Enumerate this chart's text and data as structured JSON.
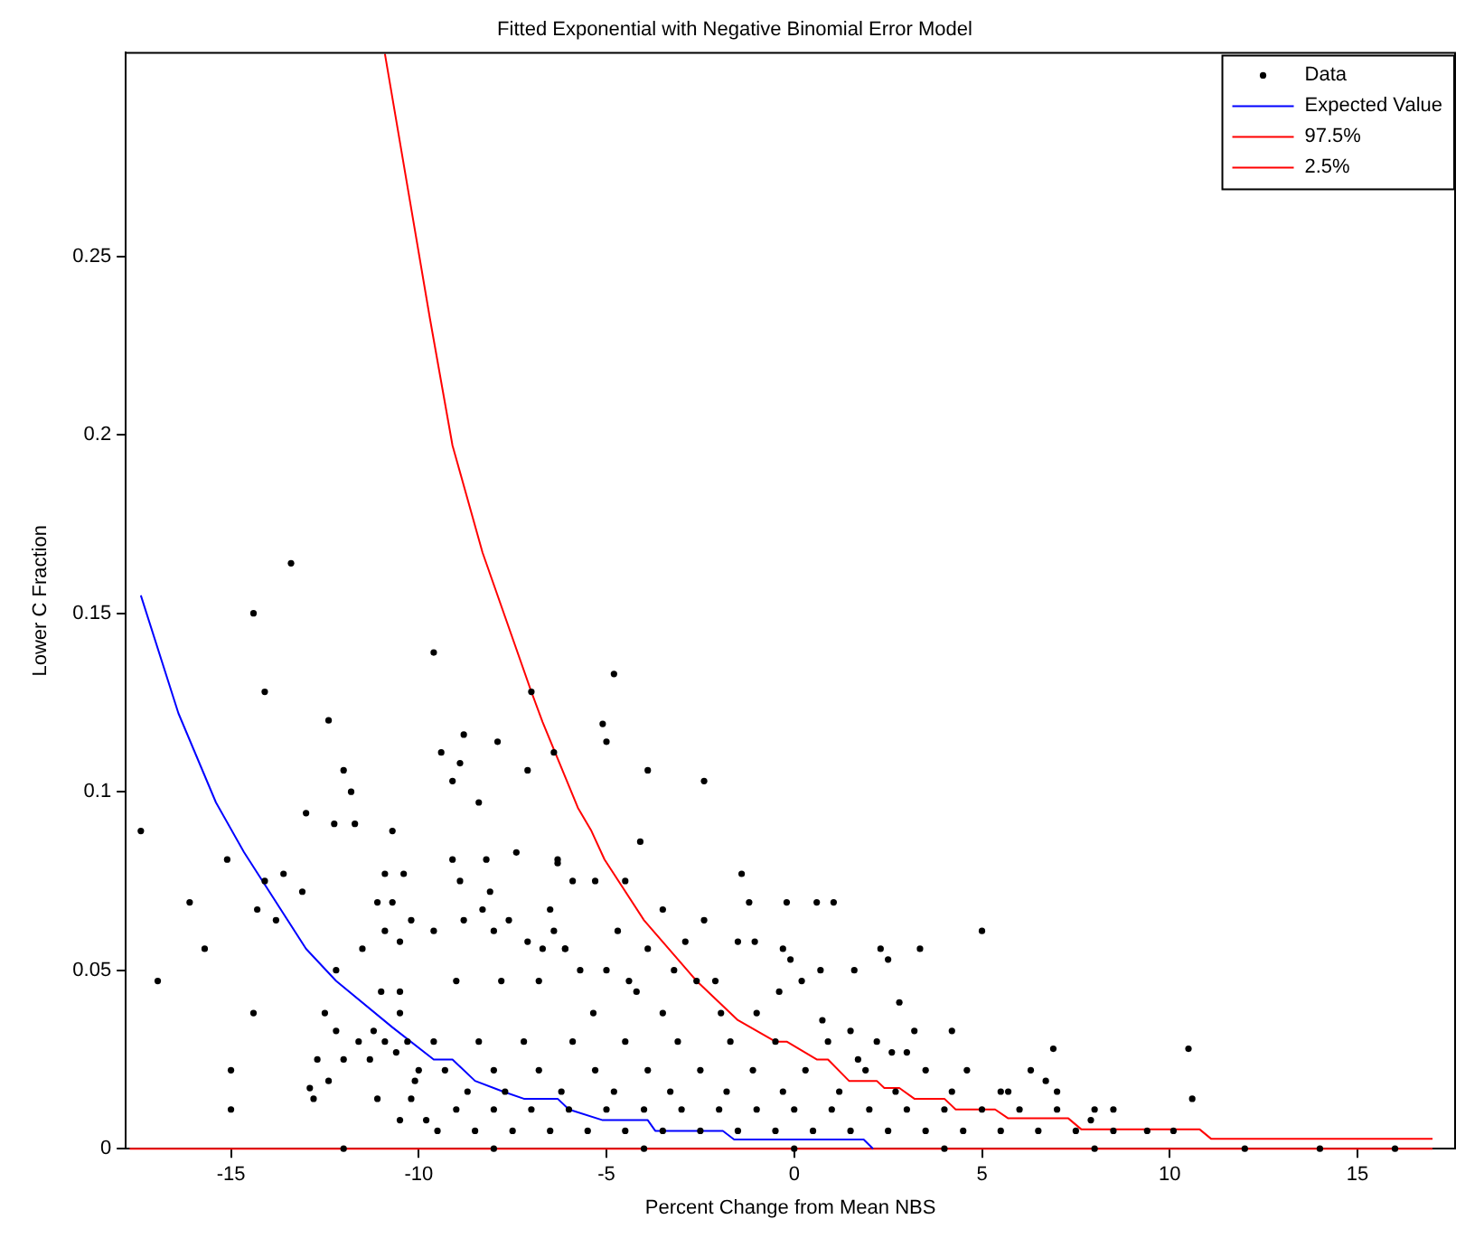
{
  "chart_data": {
    "type": "scatter",
    "title": "Fitted Exponential with Negative Binomial Error Model",
    "xlabel": "Percent Change from Mean NBS",
    "ylabel": "Lower C Fraction",
    "xlim": [
      -17.8,
      17.6
    ],
    "ylim": [
      0,
      0.307
    ],
    "xticks": [
      -15,
      -10,
      -5,
      0,
      5,
      10,
      15
    ],
    "yticks": [
      0,
      0.05,
      0.1,
      0.15,
      0.2,
      0.25
    ],
    "grid": false,
    "legend": "top right",
    "series": [
      {
        "name": "Data",
        "type": "scatter",
        "color": "#000000",
        "marker": "circle",
        "x": [
          -17.4,
          -16.95,
          -16.1,
          -15.7,
          -15.1,
          -15.0,
          -15.0,
          -14.4,
          -14.1,
          -13.4,
          -14.4,
          -14.3,
          -14.1,
          -13.8,
          -13.6,
          -13.1,
          -13.0,
          -12.9,
          -12.8,
          -12.7,
          -12.4,
          -12.4,
          -12.25,
          -12.2,
          -12.5,
          -12.2,
          -12.0,
          -11.8,
          -11.7,
          -12.0,
          -11.6,
          -11.5,
          -11.3,
          -11.2,
          -11.1,
          -11.1,
          -11.0,
          -10.9,
          -10.9,
          -10.9,
          -10.7,
          -10.7,
          -10.6,
          -10.5,
          -10.5,
          -10.5,
          -10.4,
          -10.3,
          -10.2,
          -10.5,
          -10.2,
          -10.1,
          -10.0,
          -9.8,
          -9.6,
          -9.6,
          -9.4,
          -9.1,
          -9.1,
          -8.9,
          -8.8,
          -8.4,
          -7.9,
          -7.4,
          -7.1,
          -7.0,
          -6.4,
          -6.3,
          -5.9,
          -8.2,
          -8.1,
          -8.9,
          -8.8,
          -8.3,
          -8.0,
          -7.6,
          -6.5,
          -6.4,
          -6.7,
          -6.1,
          -7.1,
          -4.8,
          -5.1,
          -5.0,
          -3.9,
          -2.4,
          -4.1,
          -6.3,
          -5.3,
          -4.5,
          -1.4,
          -1.2,
          -0.2,
          0.6,
          1.05,
          -3.5,
          -2.4,
          -1.5,
          -1.05,
          -0.3,
          -0.1,
          0.7,
          1.6,
          2.3,
          2.5,
          3.35,
          2.8,
          3.2,
          4.2,
          5.0,
          5.5,
          4.6,
          2.6,
          3.0,
          1.7,
          -0.4,
          -2.1,
          -2.9,
          -3.2,
          -3.9,
          -4.7,
          -6.1,
          -5.7,
          -5.0,
          -4.2,
          -5.35,
          -3.5,
          -1.95,
          -1.0,
          0.75,
          1.5,
          -9.5,
          -8.5,
          -7.5,
          -6.5,
          -5.5,
          -4.5,
          -3.5,
          -2.5,
          -1.5,
          -0.5,
          0.5,
          1.5,
          2.5,
          3.5,
          4.5,
          5.5,
          6.5,
          7.5,
          8.5,
          -9,
          -8,
          -7,
          -6,
          -5,
          -4,
          -3,
          -2,
          -1,
          0,
          1,
          2,
          3,
          4,
          5,
          6,
          7,
          8,
          -8.7,
          -7.7,
          -6.2,
          -4.8,
          -3.3,
          -1.8,
          -0.3,
          1.2,
          2.7,
          4.2,
          5.7,
          7.0,
          -9.3,
          -8,
          -6.8,
          -5.3,
          -3.9,
          -2.5,
          -1.1,
          0.3,
          1.9,
          3.5,
          -9.6,
          -8.4,
          -7.2,
          -5.9,
          -4.5,
          -3.1,
          -1.7,
          -0.5,
          0.9,
          2.2,
          -9.0,
          -7.8,
          -6.8,
          -4.4,
          -2.6,
          0.2,
          6.9,
          6.3,
          6.7,
          10.5,
          10.6,
          8.5,
          7.9,
          9.4,
          10.1,
          -12,
          -8,
          -4,
          0,
          4,
          8,
          12,
          14,
          16
        ],
        "values": [
          0.089,
          0.047,
          0.069,
          0.056,
          0.081,
          0.022,
          0.011,
          0.15,
          0.128,
          0.164,
          0.038,
          0.067,
          0.075,
          0.064,
          0.077,
          0.072,
          0.094,
          0.017,
          0.014,
          0.025,
          0.019,
          0.12,
          0.091,
          0.05,
          0.038,
          0.033,
          0.106,
          0.1,
          0.091,
          0.025,
          0.03,
          0.056,
          0.025,
          0.033,
          0.014,
          0.069,
          0.044,
          0.077,
          0.061,
          0.03,
          0.089,
          0.069,
          0.027,
          0.044,
          0.058,
          0.038,
          0.077,
          0.03,
          0.064,
          0.008,
          0.014,
          0.019,
          0.022,
          0.008,
          0.061,
          0.139,
          0.111,
          0.103,
          0.081,
          0.108,
          0.116,
          0.097,
          0.114,
          0.083,
          0.106,
          0.128,
          0.111,
          0.081,
          0.075,
          0.081,
          0.072,
          0.075,
          0.064,
          0.067,
          0.061,
          0.064,
          0.067,
          0.061,
          0.056,
          0.056,
          0.058,
          0.133,
          0.119,
          0.114,
          0.106,
          0.103,
          0.086,
          0.08,
          0.075,
          0.075,
          0.077,
          0.069,
          0.069,
          0.069,
          0.069,
          0.067,
          0.064,
          0.058,
          0.058,
          0.056,
          0.053,
          0.05,
          0.05,
          0.056,
          0.053,
          0.056,
          0.041,
          0.033,
          0.033,
          0.061,
          0.016,
          0.022,
          0.027,
          0.027,
          0.025,
          0.044,
          0.047,
          0.058,
          0.05,
          0.056,
          0.061,
          0.056,
          0.05,
          0.05,
          0.044,
          0.038,
          0.038,
          0.038,
          0.038,
          0.036,
          0.033,
          0.005,
          0.005,
          0.005,
          0.005,
          0.005,
          0.005,
          0.005,
          0.005,
          0.005,
          0.005,
          0.005,
          0.005,
          0.005,
          0.005,
          0.005,
          0.005,
          0.005,
          0.005,
          0.005,
          0.011,
          0.011,
          0.011,
          0.011,
          0.011,
          0.011,
          0.011,
          0.011,
          0.011,
          0.011,
          0.011,
          0.011,
          0.011,
          0.011,
          0.011,
          0.011,
          0.011,
          0.011,
          0.016,
          0.016,
          0.016,
          0.016,
          0.016,
          0.016,
          0.016,
          0.016,
          0.016,
          0.016,
          0.016,
          0.016,
          0.022,
          0.022,
          0.022,
          0.022,
          0.022,
          0.022,
          0.022,
          0.022,
          0.022,
          0.022,
          0.03,
          0.03,
          0.03,
          0.03,
          0.03,
          0.03,
          0.03,
          0.03,
          0.03,
          0.03,
          0.047,
          0.047,
          0.047,
          0.047,
          0.047,
          0.047,
          0.028,
          0.022,
          0.019,
          0.028,
          0.014,
          0.011,
          0.008,
          0.005,
          0.005,
          0,
          0,
          0,
          0,
          0,
          0,
          0,
          0,
          0
        ]
      },
      {
        "name": "Expected Value",
        "type": "line",
        "color": "#0000ff",
        "marker": "none",
        "line_style": "solid",
        "x": [
          -17.4,
          -16.4,
          -15.4,
          -14.65,
          -13.0,
          -12.2,
          -10.7,
          -9.6,
          -9.1,
          -8.5,
          -7.75,
          -7.2,
          -6.3,
          -6.0,
          -5.1,
          -3.9,
          -3.7,
          -1.9,
          -1.6,
          1.85,
          2.1
        ],
        "values": [
          0.155,
          0.122,
          0.097,
          0.083,
          0.056,
          0.047,
          0.034,
          0.025,
          0.025,
          0.019,
          0.016,
          0.014,
          0.014,
          0.011,
          0.008,
          0.008,
          0.005,
          0.005,
          0.0026,
          0.0026,
          0
        ]
      },
      {
        "name": "97.5%",
        "type": "line",
        "color": "#ff0000",
        "marker": "none",
        "line_style": "solid",
        "x": [
          -10.9,
          -9.7,
          -9.1,
          -8.3,
          -7.0,
          -6.7,
          -5.76,
          -5.4,
          -5.05,
          -4.0,
          -2.6,
          -1.5,
          -0.5,
          -0.2,
          0.6,
          0.9,
          1.46,
          2.2,
          2.4,
          2.8,
          3.2,
          4.0,
          4.3,
          5.35,
          5.7,
          7.3,
          7.65,
          10.8,
          11.1,
          17.0
        ],
        "values": [
          0.3067,
          0.2325,
          0.197,
          0.167,
          0.128,
          0.1195,
          0.0955,
          0.089,
          0.081,
          0.064,
          0.047,
          0.036,
          0.03,
          0.03,
          0.025,
          0.025,
          0.019,
          0.019,
          0.017,
          0.017,
          0.014,
          0.014,
          0.011,
          0.011,
          0.0085,
          0.0085,
          0.0054,
          0.0054,
          0.0028,
          0.0028
        ]
      },
      {
        "name": "2.5%",
        "type": "line",
        "color": "#ff0000",
        "marker": "none",
        "line_style": "solid",
        "x": [
          -17.7,
          17.0
        ],
        "values": [
          0,
          0
        ]
      }
    ]
  }
}
